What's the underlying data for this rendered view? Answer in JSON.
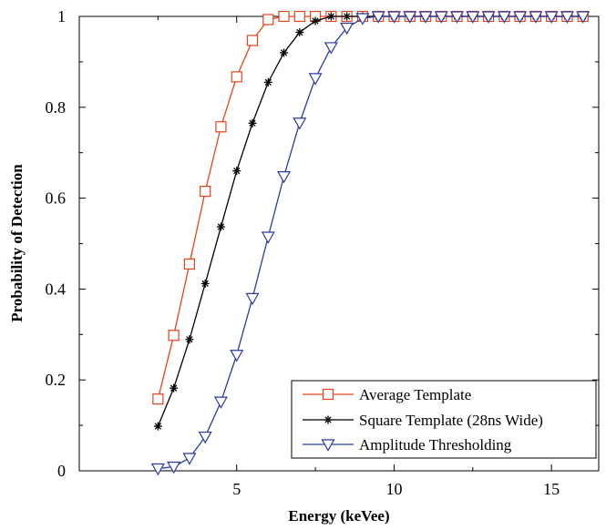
{
  "chart_data": {
    "type": "line",
    "title": "",
    "xlabel": "Energy (keVee)",
    "ylabel": "Probability of Detection",
    "xlim": [
      0,
      16.5
    ],
    "ylim": [
      0,
      1
    ],
    "xticks": [
      5,
      10,
      15
    ],
    "xtick_labels": [
      "5",
      "10",
      "15"
    ],
    "yticks": [
      0,
      0.2,
      0.4,
      0.6,
      0.8,
      1
    ],
    "ytick_labels": [
      "0",
      "0.2",
      "0.4",
      "0.6",
      "0.8",
      "1"
    ],
    "grid": false,
    "legend_position": "bottom-right",
    "series": [
      {
        "name": "Average Template",
        "color": "#e8431c",
        "marker": "square",
        "x": [
          2.5,
          3,
          3.5,
          4,
          4.5,
          5,
          5.5,
          6,
          6.5,
          7,
          7.5,
          8,
          8.5,
          9,
          9.5,
          10,
          10.5,
          11,
          11.5,
          12,
          12.5,
          13,
          13.5,
          14,
          14.5,
          15,
          15.5,
          16
        ],
        "y": [
          0.158,
          0.298,
          0.455,
          0.615,
          0.757,
          0.867,
          0.947,
          0.993,
          1,
          1,
          1,
          1,
          1,
          1,
          1,
          1,
          1,
          1,
          1,
          1,
          1,
          1,
          1,
          1,
          1,
          1,
          1,
          1
        ]
      },
      {
        "name": "Square Template (28ns Wide)",
        "color": "#000000",
        "marker": "star",
        "x": [
          2.5,
          3,
          3.5,
          4,
          4.5,
          5,
          5.5,
          6,
          6.5,
          7,
          7.5,
          8,
          8.5,
          9,
          9.5,
          10,
          10.5,
          11,
          11.5,
          12,
          12.5,
          13,
          13.5,
          14,
          14.5,
          15,
          15.5,
          16
        ],
        "y": [
          0.098,
          0.182,
          0.289,
          0.412,
          0.537,
          0.66,
          0.765,
          0.855,
          0.92,
          0.965,
          0.99,
          1,
          1,
          1,
          1,
          1,
          1,
          1,
          1,
          1,
          1,
          1,
          1,
          1,
          1,
          1,
          1,
          1
        ]
      },
      {
        "name": "Amplitude Thresholding",
        "color": "#2a3aa0",
        "marker": "triangle-down",
        "x": [
          2.5,
          3,
          3.5,
          4,
          4.5,
          5,
          5.5,
          6,
          6.5,
          7,
          7.5,
          8,
          8.5,
          9,
          9.5,
          10,
          10.5,
          11,
          11.5,
          12,
          12.5,
          13,
          13.5,
          14,
          14.5,
          15,
          15.5,
          16
        ],
        "y": [
          0.005,
          0.009,
          0.028,
          0.075,
          0.152,
          0.255,
          0.38,
          0.515,
          0.648,
          0.766,
          0.864,
          0.932,
          0.975,
          0.996,
          1,
          1,
          1,
          1,
          1,
          1,
          1,
          1,
          1,
          1,
          1,
          1,
          1,
          1
        ]
      }
    ]
  }
}
